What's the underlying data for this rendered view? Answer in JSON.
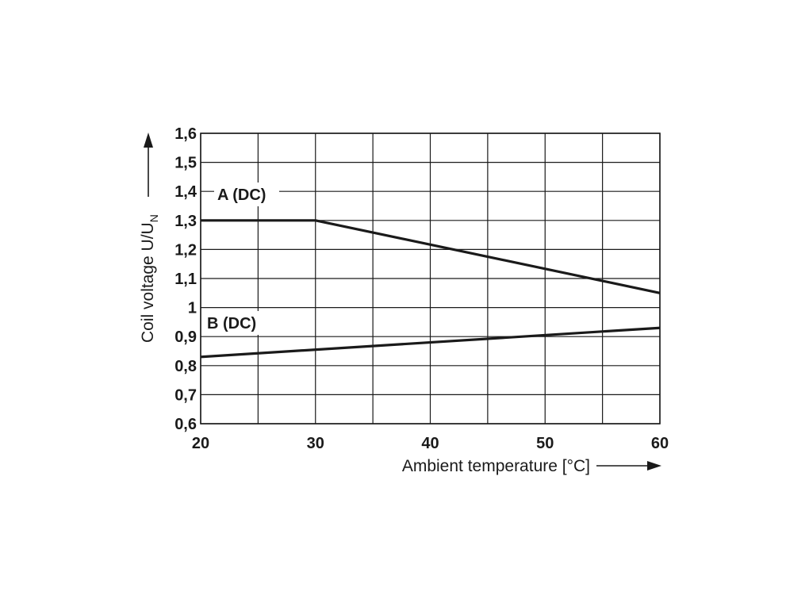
{
  "chart_data": {
    "type": "line",
    "xlabel": "Ambient temperature [°C]",
    "ylabel_main": "Coil voltage U/U",
    "ylabel_subscript": "N",
    "xlim": [
      20,
      60
    ],
    "ylim": [
      0.6,
      1.6
    ],
    "x_grid_step": 5,
    "y_grid_step": 0.1,
    "x_ticks": [
      20,
      30,
      40,
      50,
      60
    ],
    "x_tick_labels": [
      "20",
      "30",
      "40",
      "50",
      "60"
    ],
    "y_ticks": [
      0.6,
      0.7,
      0.8,
      0.9,
      1.0,
      1.1,
      1.2,
      1.3,
      1.4,
      1.5,
      1.6
    ],
    "y_tick_labels": [
      "0,6",
      "0,7",
      "0,8",
      "0,9",
      "1",
      "1,1",
      "1,2",
      "1,3",
      "1,4",
      "1,5",
      "1,6"
    ],
    "grid": true,
    "series": [
      {
        "name": "A (DC)",
        "x": [
          20,
          30,
          60
        ],
        "y": [
          1.3,
          1.3,
          1.05
        ]
      },
      {
        "name": "B (DC)",
        "x": [
          20,
          60
        ],
        "y": [
          0.83,
          0.93
        ]
      }
    ],
    "line_color": "#1a1a1a"
  }
}
